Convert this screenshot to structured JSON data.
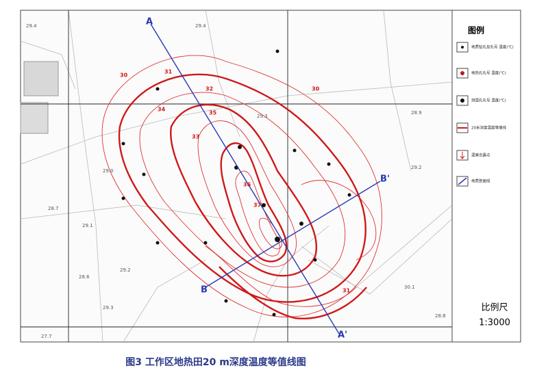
{
  "map": {
    "section_labels": [
      "A",
      "A'",
      "B",
      "B'"
    ],
    "point_values": [
      "29.4",
      "29.3",
      "29.2",
      "29.1",
      "29.0",
      "28.9",
      "29.2",
      "28.7",
      "30.1",
      "29.4",
      "28.8",
      "27.7",
      "29.3",
      "28.6"
    ],
    "contour_labels": [
      "30",
      "31",
      "32",
      "35",
      "34",
      "33",
      "36",
      "37",
      "30",
      "31"
    ]
  },
  "legend": {
    "title": "图例",
    "items": [
      "地质钻孔及孔号 温度(℃)",
      "地热孔孔号 温度(℃)",
      "测温孔孔号 温度(℃)",
      "20米深度温度等值线",
      "温泉出露点",
      "地质剖面线"
    ],
    "scale_title": "比例尺",
    "scale": "1:3000"
  },
  "caption": "图3 工作区地热田20 m深度温度等值线图"
}
